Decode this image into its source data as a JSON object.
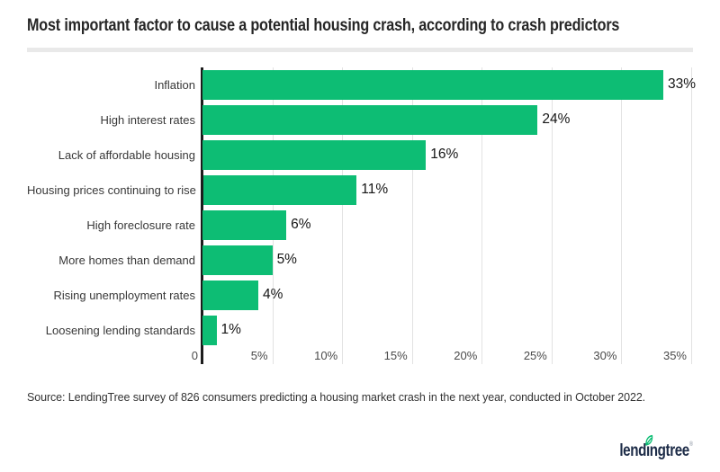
{
  "title": "Most important factor to cause a potential housing crash, according to crash predictors",
  "source": "Source: LendingTree survey of 826 consumers predicting a housing market crash in the next year, conducted in October 2022.",
  "logo": {
    "part1": "lend",
    "part2": "ıngtree",
    "reg": "®",
    "leaf_icon": "leaf-icon"
  },
  "colors": {
    "bar_green": "#0dbd74",
    "axis_black": "#1c1c1c",
    "gridline_gray": "#e2e2e2",
    "logo_navy": "#1c2b47",
    "leaf_green": "#0dbd74",
    "title_rule_gray": "#e9e9e9"
  },
  "chart_data": {
    "type": "bar",
    "orientation": "horizontal",
    "title": "Most important factor to cause a potential housing crash, according to crash predictors",
    "categories": [
      "Inflation",
      "High interest rates",
      "Lack of affordable housing",
      "Housing prices continuing to rise",
      "High foreclosure rate",
      "More homes than demand",
      "Rising unemployment rates",
      "Loosening lending standards"
    ],
    "values": [
      33,
      24,
      16,
      11,
      6,
      5,
      4,
      1
    ],
    "value_labels": [
      "33%",
      "24%",
      "16%",
      "11%",
      "6%",
      "5%",
      "4%",
      "1%"
    ],
    "xlabel": "",
    "ylabel": "",
    "xlim": [
      0,
      35
    ],
    "x_tick_step": 5,
    "x_ticks": [
      "0",
      "5%",
      "10%",
      "15%",
      "20%",
      "25%",
      "30%",
      "35%"
    ],
    "grid": true,
    "legend": false
  }
}
